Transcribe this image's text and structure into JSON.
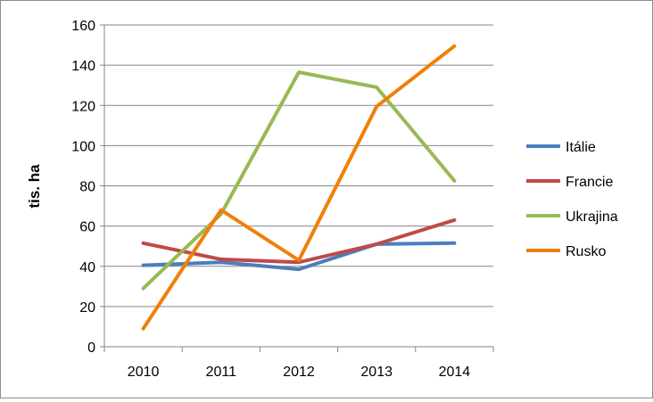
{
  "chart_data": {
    "type": "line",
    "title": "",
    "xlabel": "",
    "ylabel": "tis. ha",
    "ylim": [
      0,
      160
    ],
    "yticks": [
      0,
      20,
      40,
      60,
      80,
      100,
      120,
      140,
      160
    ],
    "grid": true,
    "legend_position": "right",
    "categories": [
      "2010",
      "2011",
      "2012",
      "2013",
      "2014"
    ],
    "series": [
      {
        "name": "Itálie",
        "color": "#4a7ebb",
        "values": [
          40.5,
          42,
          38.5,
          51,
          51.5
        ]
      },
      {
        "name": "Francie",
        "color": "#be4b48",
        "values": [
          51.5,
          43.5,
          42,
          51,
          63
        ]
      },
      {
        "name": "Ukrajina",
        "color": "#98b954",
        "values": [
          29,
          66,
          136.5,
          129,
          82.5
        ]
      },
      {
        "name": "Rusko",
        "color": "#f07f09",
        "values": [
          9,
          68,
          43,
          119.5,
          149.5
        ]
      }
    ]
  }
}
